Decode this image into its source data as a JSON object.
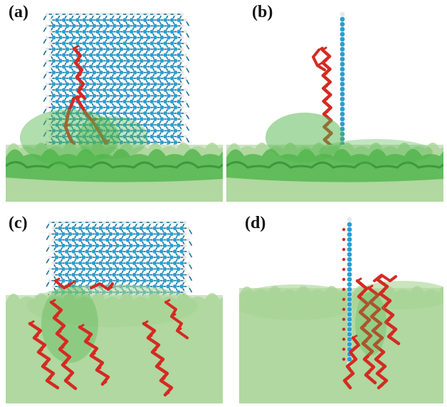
{
  "panels": [
    {
      "id": "a",
      "label": "(a)",
      "view": "face",
      "lipids": "single"
    },
    {
      "id": "b",
      "label": "(b)",
      "view": "edge",
      "lipids": "single"
    },
    {
      "id": "c",
      "label": "(c)",
      "view": "face",
      "lipids": "many"
    },
    {
      "id": "d",
      "label": "(d)",
      "view": "edge",
      "lipids": "many"
    }
  ],
  "colors": {
    "carbon": "#2a9fd0",
    "hydrogen": "#e8e8e8",
    "bond": "#1b6f99",
    "lipid": "#d42a22",
    "membrane_top": "#4fb54a",
    "membrane_dark": "#2e8a2e",
    "membrane_base": "#cfe3c6",
    "membrane_light": "#a6d493"
  }
}
